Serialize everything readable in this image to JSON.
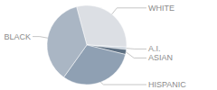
{
  "chart_data": {
    "type": "pie",
    "categories": [
      "WHITE",
      "A.I.",
      "ASIAN",
      "HISPANIC",
      "BLACK"
    ],
    "values": [
      30,
      1,
      2,
      31,
      36
    ],
    "colors": [
      "#dcdfe4",
      "#c9d2dc",
      "#5d6f82",
      "#8fa0b3",
      "#aab6c4"
    ]
  }
}
